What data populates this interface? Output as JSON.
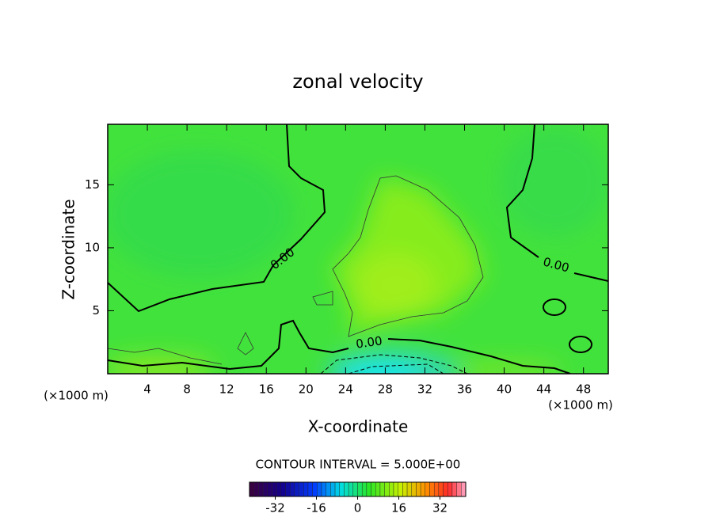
{
  "chart_data": {
    "type": "contour",
    "title": "zonal velocity",
    "x_label": "X-coordinate",
    "y_label": "Z-coordinate",
    "x_unit": "(×1000 m)",
    "xlim": [
      0,
      50.5
    ],
    "xticks": [
      4,
      8,
      12,
      16,
      20,
      24,
      28,
      32,
      36,
      40,
      44,
      48
    ],
    "ylim": [
      0,
      19.8
    ],
    "yticks": [
      5,
      10,
      15
    ],
    "contour_labels": [
      "0.00",
      "0.00",
      "0.00"
    ],
    "contour_interval": "CONTOUR INTERVAL = 5.000E+00",
    "clim": [
      -42,
      42
    ],
    "cticks": [
      -32,
      -16,
      0,
      16,
      32
    ]
  }
}
